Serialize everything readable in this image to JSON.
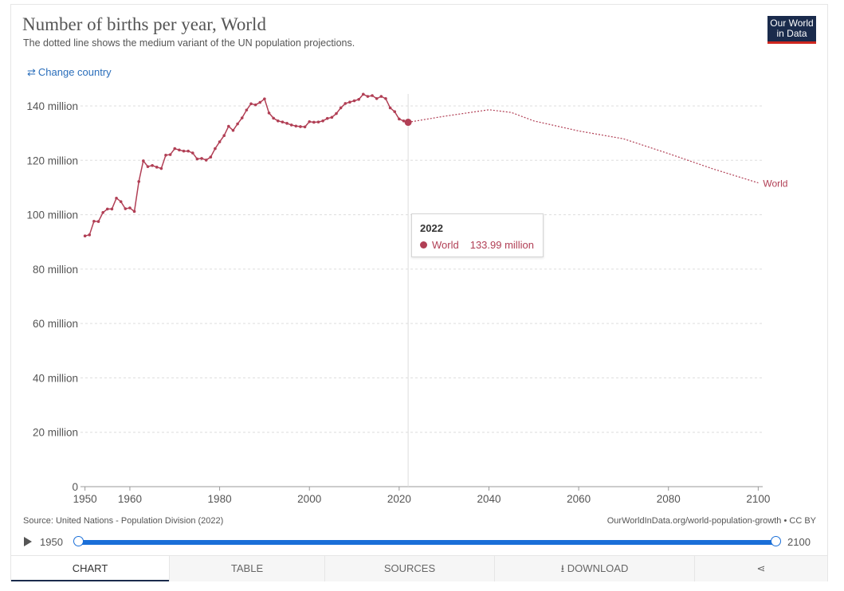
{
  "header": {
    "title": "Number of births per year, World",
    "subtitle": "The dotted line shows the medium variant of the UN population projections.",
    "logo_line1": "Our World",
    "logo_line2": "in Data",
    "change_country": "Change country"
  },
  "colors": {
    "series": "#b13f55",
    "accent": "#1a6fd8",
    "brand": "#1a2b4c"
  },
  "tooltip": {
    "year": "2022",
    "series": "World",
    "value": "133.99 million"
  },
  "footer": {
    "source": "Source: United Nations - Population Division (2022)",
    "url": "OurWorldInData.org/world-population-growth • CC BY"
  },
  "timeline": {
    "start": "1950",
    "end": "2100"
  },
  "tabs": [
    "CHART",
    "TABLE",
    "SOURCES",
    "DOWNLOAD"
  ],
  "icons": {
    "change": "swap-arrows-icon",
    "play": "play-icon",
    "download": "download-icon",
    "share": "share-icon"
  },
  "chart_data": {
    "type": "line",
    "title": "Number of births per year, World",
    "xlim": [
      1949,
      2101
    ],
    "ylim": [
      0,
      140000000
    ],
    "grid": true,
    "y_ticks": [
      0,
      20000000,
      40000000,
      60000000,
      80000000,
      100000000,
      120000000,
      140000000
    ],
    "y_tick_labels": [
      "0",
      "20 million",
      "40 million",
      "60 million",
      "80 million",
      "100 million",
      "120 million",
      "140 million"
    ],
    "x_ticks": [
      1950,
      1960,
      1980,
      2000,
      2020,
      2040,
      2060,
      2080,
      2100
    ],
    "x_tick_labels": [
      "1950",
      "1960",
      "1980",
      "2000",
      "2020",
      "2040",
      "2060",
      "2080",
      "2100"
    ],
    "series": [
      {
        "name": "World",
        "style": "solid",
        "x": [
          1950,
          1951,
          1952,
          1953,
          1954,
          1955,
          1956,
          1957,
          1958,
          1959,
          1960,
          1961,
          1962,
          1963,
          1964,
          1965,
          1966,
          1967,
          1968,
          1969,
          1970,
          1971,
          1972,
          1973,
          1974,
          1975,
          1976,
          1977,
          1978,
          1979,
          1980,
          1981,
          1982,
          1983,
          1984,
          1985,
          1986,
          1987,
          1988,
          1989,
          1990,
          1991,
          1992,
          1993,
          1994,
          1995,
          1996,
          1997,
          1998,
          1999,
          2000,
          2001,
          2002,
          2003,
          2004,
          2005,
          2006,
          2007,
          2008,
          2009,
          2010,
          2011,
          2012,
          2013,
          2014,
          2015,
          2016,
          2017,
          2018,
          2019,
          2020,
          2021,
          2022
        ],
        "y": [
          92.2,
          92.6,
          97.6,
          97.5,
          100.8,
          102.1,
          102.1,
          106.1,
          104.8,
          102.2,
          102.5,
          101.2,
          112.2,
          119.8,
          117.7,
          118.1,
          117.5,
          117.0,
          121.9,
          122.1,
          124.3,
          123.8,
          123.4,
          123.4,
          122.7,
          120.5,
          120.7,
          120.1,
          121.2,
          124.3,
          126.8,
          129.1,
          132.5,
          131.0,
          133.4,
          135.6,
          138.5,
          140.8,
          140.4,
          141.3,
          142.6,
          137.4,
          135.5,
          134.5,
          134.1,
          133.6,
          133.0,
          132.6,
          132.4,
          132.3,
          134.2,
          134.0,
          134.1,
          134.5,
          135.4,
          135.8,
          137.2,
          139.3,
          140.9,
          141.4,
          141.9,
          142.4,
          144.3,
          143.5,
          143.8,
          142.7,
          143.5,
          142.7,
          139.3,
          137.9,
          135.2,
          134.5,
          133.99
        ],
        "unit": "million"
      },
      {
        "name": "World",
        "style": "dotted",
        "x": [
          2022,
          2030,
          2040,
          2045,
          2050,
          2060,
          2070,
          2080,
          2090,
          2100
        ],
        "y": [
          133.99,
          136.2,
          138.6,
          137.6,
          134.5,
          130.8,
          127.9,
          122.5,
          116.8,
          111.7
        ],
        "unit": "million"
      }
    ],
    "end_label": "World",
    "highlight": {
      "x": 2022,
      "y": 133.99
    }
  }
}
